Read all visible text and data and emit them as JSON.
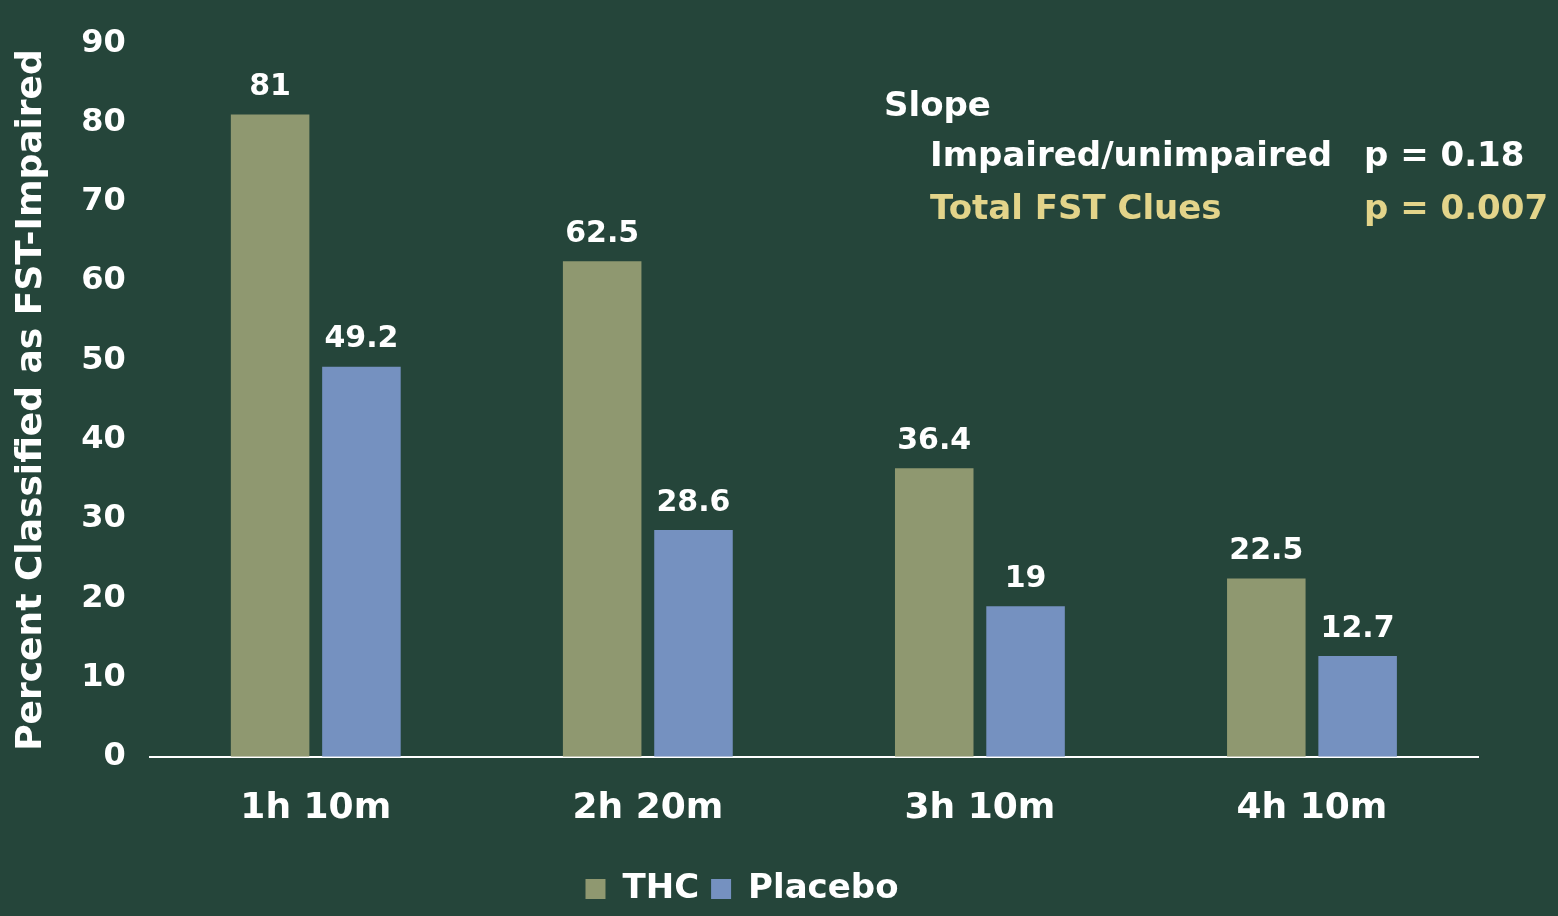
{
  "chart_data": {
    "type": "bar",
    "ylabel": "Percent Classified as FST-Impaired",
    "categories": [
      "1h 10m",
      "2h 20m",
      "3h 10m",
      "4h 10m"
    ],
    "series": [
      {
        "name": "THC",
        "color": "#8f9870",
        "values": [
          81,
          62.5,
          36.4,
          22.5
        ]
      },
      {
        "name": "Placebo",
        "color": "#7591c0",
        "values": [
          49.2,
          28.6,
          19,
          12.7
        ]
      }
    ],
    "ylim": [
      0,
      90
    ],
    "yticks": [
      0,
      10,
      20,
      30,
      40,
      50,
      60,
      70,
      80,
      90
    ],
    "grid": false,
    "legend": "bottom",
    "data_labels": true,
    "annotations": [
      "Slope",
      "Impaired/unimpaired",
      "p = 0.18",
      "Total FST Clues",
      "p = 0.007"
    ]
  }
}
